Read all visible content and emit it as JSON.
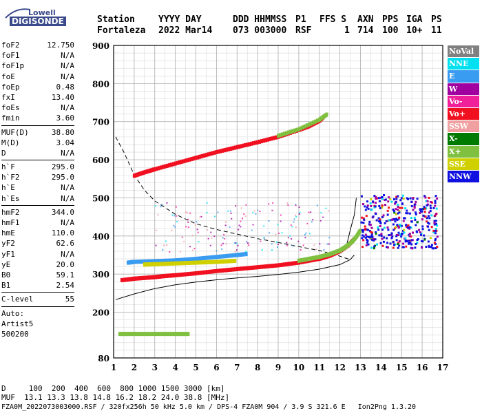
{
  "logo": {
    "brand": "Lowell",
    "product": "DIGISONDE"
  },
  "header": {
    "row1": [
      "Station",
      "YYYY DAY",
      "DDD HHMMSS",
      "P1",
      "FFS S",
      "AXN",
      "PPS",
      "IGA",
      "PS"
    ],
    "row2": [
      "Fortaleza",
      "2022 Mar14",
      "073 003000",
      "RSF",
      "1",
      "714",
      "100",
      "10+",
      "11"
    ]
  },
  "params": {
    "group1": [
      [
        "foF2",
        "12.750"
      ],
      [
        "foF1",
        "N/A"
      ],
      [
        "foF1p",
        "N/A"
      ],
      [
        "foE",
        "N/A"
      ],
      [
        "foEp",
        "0.48"
      ],
      [
        "fxI",
        "13.40"
      ],
      [
        "foEs",
        "N/A"
      ],
      [
        "fmin",
        "3.60"
      ]
    ],
    "group2": [
      [
        "MUF(D)",
        "38.80"
      ],
      [
        "M(D)",
        "3.04"
      ],
      [
        "D",
        "N/A"
      ]
    ],
    "group3": [
      [
        "h`F",
        "295.0"
      ],
      [
        "h`F2",
        "295.0"
      ],
      [
        "h`E",
        "N/A"
      ],
      [
        "h`Es",
        "N/A"
      ]
    ],
    "group4": [
      [
        "hmF2",
        "344.0"
      ],
      [
        "hmF1",
        "N/A"
      ],
      [
        "hmE",
        "110.0"
      ],
      [
        "yF2",
        "62.6"
      ],
      [
        "yF1",
        "N/A"
      ],
      [
        "yE",
        "20.0"
      ],
      [
        "B0",
        "59.1"
      ],
      [
        "B1",
        "2.54"
      ]
    ],
    "group5": [
      [
        "C-level",
        "55"
      ]
    ],
    "auto": [
      "Auto:",
      "Artist5",
      "500200"
    ]
  },
  "legend": [
    {
      "label": "NoVal",
      "color": "#808080"
    },
    {
      "label": "NNE",
      "color": "#00e0f0"
    },
    {
      "label": "E",
      "color": "#3a9cf0"
    },
    {
      "label": "W",
      "color": "#a000a0"
    },
    {
      "label": "Vo-",
      "color": "#f0209a"
    },
    {
      "label": "Vo+",
      "color": "#f01020"
    },
    {
      "label": "SSW",
      "color": "#f0a0a0"
    },
    {
      "label": "X-",
      "color": "#007a00"
    },
    {
      "label": "X+",
      "color": "#80c040"
    },
    {
      "label": "SSE",
      "color": "#d0d000"
    },
    {
      "label": "NNW",
      "color": "#1010e0"
    }
  ],
  "footer": {
    "line1": "D     100  200  400  600  800 1000 1500 3000 [km]",
    "line2": "MUF  13.1 13.3 13.8 14.8 16.2 18.2 24.0 38.8 [MHz]",
    "line3": "FZA0M_2022073003000.RSF / 320fx256h 50 kHz 5.0 km / DPS-4 FZA0M 904 / 3.9 S 321.6 E   Ion2Png 1.3.20"
  },
  "chart_data": {
    "type": "scatter",
    "xlabel": "",
    "ylabel": "",
    "xlim": [
      1,
      17
    ],
    "ylim": [
      80,
      900
    ],
    "xticks": [
      1,
      2,
      3,
      4,
      5,
      6,
      7,
      8,
      9,
      10,
      11,
      12,
      13,
      14,
      15,
      16,
      17
    ],
    "yticks": [
      80,
      200,
      300,
      400,
      500,
      600,
      700,
      800,
      900
    ],
    "grid": true,
    "series": [
      {
        "name": "Vo+",
        "color": "#f01020",
        "x": [
          1.4,
          2.0,
          2.5,
          3.0,
          3.5,
          4.0,
          5.0,
          6.0,
          7.0,
          8.0,
          9.0,
          10.0,
          11.0,
          11.5,
          12.0,
          12.4,
          12.7
        ],
        "y": [
          284,
          288,
          290,
          292,
          295,
          297,
          302,
          308,
          313,
          318,
          323,
          330,
          340,
          348,
          360,
          375,
          392
        ]
      },
      {
        "name": "Vo+",
        "color": "#f01020",
        "x": [
          2.0,
          2.5,
          3.0,
          4.0,
          5.0,
          6.0,
          7.0,
          8.0,
          9.0,
          10.0,
          10.5,
          11.0,
          11.2
        ],
        "y": [
          558,
          567,
          575,
          590,
          605,
          620,
          633,
          646,
          660,
          678,
          688,
          702,
          712
        ]
      },
      {
        "name": "X+",
        "color": "#80c040",
        "x": [
          10.0,
          10.5,
          11.0,
          11.5,
          12.0,
          12.3,
          12.6,
          12.8,
          13.0
        ],
        "y": [
          335,
          340,
          345,
          352,
          362,
          372,
          385,
          398,
          415
        ]
      },
      {
        "name": "X+",
        "color": "#80c040",
        "x": [
          9.0,
          10.0,
          11.0,
          11.4
        ],
        "y": [
          663,
          680,
          705,
          720
        ]
      },
      {
        "name": "E",
        "color": "#3a9cf0",
        "x": [
          1.7,
          2.0,
          3.0,
          4.0,
          5.0,
          6.0,
          7.0,
          7.5
        ],
        "y": [
          330,
          332,
          334,
          336,
          340,
          345,
          350,
          353
        ]
      },
      {
        "name": "SSE",
        "color": "#d0d000",
        "x": [
          2.5,
          3.0,
          4.0,
          5.0,
          6.0,
          7.0
        ],
        "y": [
          325,
          326,
          328,
          330,
          332,
          335
        ]
      },
      {
        "name": "X+",
        "color": "#80c040",
        "x": [
          1.3,
          2.0,
          3.0,
          4.0,
          4.7
        ],
        "y": [
          143,
          143,
          143,
          143,
          143
        ]
      }
    ],
    "curves": {
      "dashed": {
        "x": [
          1.1,
          1.5,
          2.0,
          2.5,
          3.0,
          4.0,
          5.0,
          6.0,
          7.0,
          8.0,
          9.0,
          10.0,
          11.0,
          12.0,
          12.5
        ],
        "y": [
          660,
          620,
          560,
          520,
          492,
          457,
          432,
          417,
          405,
          393,
          383,
          372,
          362,
          347,
          338
        ]
      },
      "solid": {
        "x": [
          1.1,
          2.0,
          3.0,
          4.0,
          5.0,
          6.0,
          7.0,
          8.0,
          9.0,
          10.0,
          11.0,
          12.0,
          12.5,
          12.7
        ],
        "y": [
          233,
          248,
          262,
          272,
          279,
          285,
          290,
          294,
          299,
          305,
          313,
          325,
          338,
          350
        ]
      },
      "solid_upper": {
        "x": [
          12.3,
          12.5,
          12.7,
          12.8
        ],
        "y": [
          370,
          415,
          455,
          500
        ]
      }
    }
  }
}
